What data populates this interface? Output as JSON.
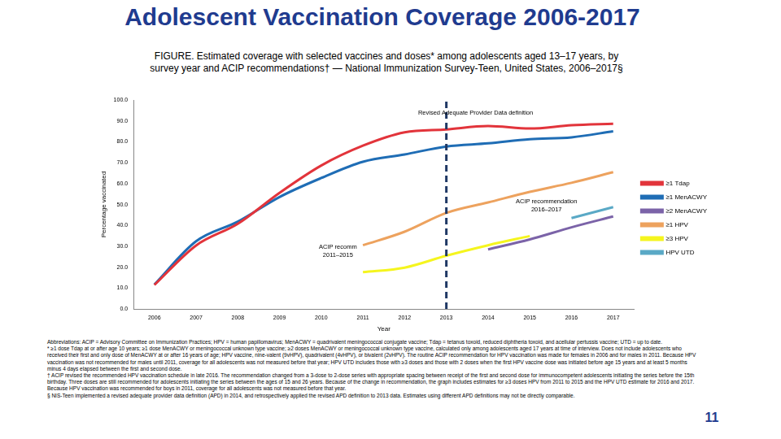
{
  "header": {
    "title": "Adolescent Vaccination Coverage 2006-2017"
  },
  "chart_data": {
    "type": "line",
    "title": "FIGURE. Estimated coverage with selected vaccines and doses* among adolescents aged 13–17 years, by survey year and ACIP recommendations† — National Immunization Survey-Teen, United States, 2006–2017§",
    "x_label": "Year",
    "y_label": "Percentage vaccinated",
    "x": [
      2006,
      2007,
      2008,
      2009,
      2010,
      2011,
      2012,
      2013,
      2014,
      2015,
      2016,
      2017
    ],
    "xlim": [
      2005.5,
      2017.5
    ],
    "xticks": [
      2006,
      2007,
      2008,
      2009,
      2010,
      2011,
      2012,
      2013,
      2014,
      2015,
      2016,
      2017
    ],
    "ylim": [
      0,
      100
    ],
    "yticks": [
      {
        "value": 0,
        "label": "0.0"
      },
      {
        "value": 10,
        "label": "10.0"
      },
      {
        "value": 20,
        "label": "20.0"
      },
      {
        "value": 30,
        "label": "30.0"
      },
      {
        "value": 40,
        "label": "40.0"
      },
      {
        "value": 50,
        "label": "50.0"
      },
      {
        "value": 60,
        "label": "60.0"
      },
      {
        "value": 70,
        "label": "70.0"
      },
      {
        "value": 80,
        "label": "80.0"
      },
      {
        "value": 90,
        "label": "90.0"
      },
      {
        "value": 100,
        "label": "100.0"
      }
    ],
    "grid": false,
    "legend": "right",
    "series": [
      {
        "name": "≥1 Tdap",
        "color": "#e2343b",
        "values": [
          11.5,
          30.4,
          40.8,
          55.6,
          68.7,
          78.2,
          84.6,
          86.0,
          87.6,
          86.4,
          88.0,
          88.7
        ]
      },
      {
        "name": "≥1 MenACWY",
        "color": "#1f6db5",
        "values": [
          11.7,
          32.4,
          41.8,
          53.6,
          62.7,
          70.5,
          74.0,
          77.8,
          79.3,
          81.3,
          82.2,
          85.1
        ]
      },
      {
        "name": "≥2 MenACWY",
        "color": "#7b63a8",
        "values": [
          null,
          null,
          null,
          null,
          null,
          null,
          null,
          null,
          28.5,
          33.3,
          39.1,
          44.3
        ]
      },
      {
        "name": "≥1 HPV",
        "color": "#eda25e",
        "values": [
          null,
          null,
          null,
          null,
          null,
          30.5,
          37.0,
          46.0,
          51.0,
          56.1,
          60.4,
          65.5
        ]
      },
      {
        "name": "≥3 HPV",
        "color": "#f5f51e",
        "values": [
          null,
          null,
          null,
          null,
          null,
          17.6,
          19.8,
          25.5,
          30.5,
          34.9,
          null,
          null
        ]
      },
      {
        "name": "HPV UTD",
        "color": "#5aa9c6",
        "values": [
          null,
          null,
          null,
          null,
          null,
          null,
          null,
          null,
          null,
          null,
          43.5,
          48.8
        ]
      }
    ],
    "reference_lines": [
      {
        "x": 2013,
        "line_style": "dashed"
      }
    ],
    "annotations": [
      {
        "text": [
          "Revised Adequate Provider Data definition"
        ],
        "x": 2013.7,
        "y": 94
      },
      {
        "text": [
          "ACIP recommendation",
          "2016–2017"
        ],
        "x": 2015.4,
        "y": 51.5
      },
      {
        "text": [
          "ACIP recomm",
          "2011–2015"
        ],
        "x": 2010.4,
        "y": 29.5
      }
    ]
  },
  "footnotes": [
    "Abbreviations: ACIP = Advisory Committee on Immunization Practices; HPV = human papillomavirus; MenACWY = quadrivalent meningococcal conjugate vaccine; Tdap = tetanus toxoid, reduced diphtheria toxoid, and acellular pertussis vaccine; UTD = up to date.",
    "* ≥1 dose Tdap at or after age 10 years; ≥1 dose MenACWY or meningococcal unknown type vaccine; ≥2 doses MenACWY or meningococcal unknown type vaccine, calculated only among adolescents aged 17 years at time of interview. Does not include adolescents who received their first and only dose of MenACWY at or after 16 years of age; HPV vaccine, nine-valent (9vHPV), quadrivalent (4vHPV), or bivalent (2vHPV). The routine ACIP recommendation for HPV vaccination was made for females in 2006 and for males in 2011. Because HPV vaccination was not recommended for males until 2011, coverage for all adolescents was not measured before that year; HPV UTD includes those with ≥3 doses and those with 2 doses when the first HPV vaccine dose was initiated before age 15 years and at least 5 months minus 4 days elapsed between the first and second dose.",
    "† ACIP revised the recommended HPV vaccination schedule in late 2016. The recommendation changed from a 3-dose to 2-dose series with appropriate spacing between receipt of the first and second dose for immunocompetent adolescents initiating the series before the 15th birthday. Three doses are still recommended for adolescents initiating the series between the ages of 15 and 26 years. Because of the change in recommendation, the graph includes estimates for ≥3 doses HPV from 2011 to 2015 and the HPV UTD estimate for 2016 and 2017. Because HPV vaccination was recommended for boys in 2011, coverage for all adolescents was not measured before that year.",
    "§ NIS-Teen implemented a revised adequate provider data definition (APD) in 2014, and retrospectively applied the revised APD definition to 2013 data. Estimates using different APD definitions may not be directly comparable."
  ],
  "page_number": "11"
}
